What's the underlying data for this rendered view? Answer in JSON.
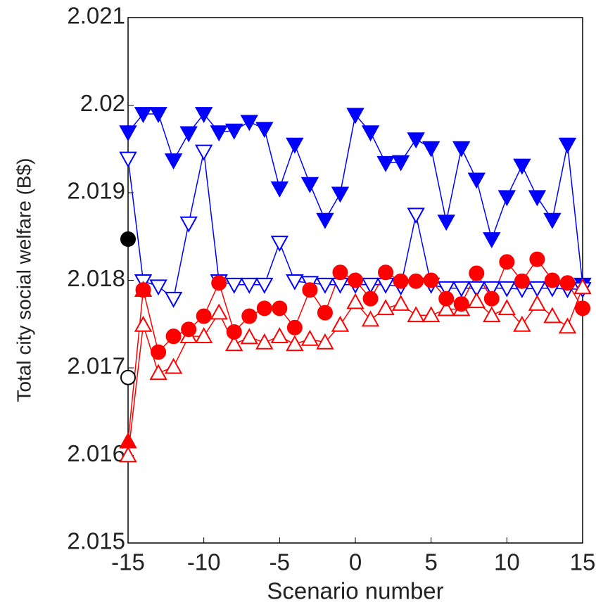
{
  "chart_data": {
    "type": "line",
    "xlabel": "Scenario number",
    "ylabel": "Total city social welfare (B$)",
    "x": [
      -15,
      -14,
      -13,
      -12,
      -11,
      -10,
      -9,
      -8,
      -7,
      -6,
      -5,
      -4,
      -3,
      -2,
      -1,
      0,
      1,
      2,
      3,
      4,
      5,
      6,
      7,
      8,
      9,
      10,
      11,
      12,
      13,
      14,
      15
    ],
    "xlim": [
      -15,
      15
    ],
    "xticks": [
      -15,
      -10,
      -5,
      0,
      5,
      10,
      15
    ],
    "ylim": [
      2.015,
      2.021
    ],
    "yticks": [
      2.015,
      2.016,
      2.017,
      2.018,
      2.019,
      2.02,
      2.021
    ],
    "series": [
      {
        "color": "#0000ff",
        "marker": "triangle-down",
        "filled": true,
        "values": [
          2.01969,
          2.0199,
          2.0199,
          2.01937,
          2.01968,
          2.0199,
          2.01969,
          2.01971,
          2.01981,
          2.01973,
          2.01905,
          2.01955,
          2.0191,
          2.01869,
          2.01899,
          2.01989,
          2.01969,
          2.01934,
          2.01935,
          2.01961,
          2.01951,
          2.01867,
          2.01951,
          2.01915,
          2.01847,
          2.01895,
          2.01931,
          2.01895,
          2.01869,
          2.01955,
          2.01795
        ]
      },
      {
        "color": "#0000ff",
        "marker": "triangle-down",
        "filled": false,
        "values": [
          2.01939,
          2.01799,
          2.01793,
          2.01779,
          2.01865,
          2.01947,
          2.01799,
          2.01795,
          2.01795,
          2.01795,
          2.01843,
          2.01799,
          2.01797,
          2.01795,
          2.01795,
          2.01795,
          2.01795,
          2.01795,
          2.01793,
          2.01875,
          2.01795,
          2.01791,
          2.01791,
          2.01791,
          2.01791,
          2.01791,
          2.0179,
          2.01791,
          2.01791,
          2.0179,
          2.0179
        ]
      },
      {
        "color": "#ff0000",
        "marker": "triangle-up",
        "filled": false,
        "values": [
          2.016,
          2.01749,
          2.01694,
          2.01701,
          2.01736,
          2.01736,
          2.01763,
          2.01727,
          2.01735,
          2.01729,
          2.01736,
          2.01727,
          2.01733,
          2.01729,
          2.01749,
          2.01775,
          2.01755,
          2.01768,
          2.01773,
          2.0176,
          2.0176,
          2.01767,
          2.01767,
          2.01776,
          2.0176,
          2.01768,
          2.01749,
          2.01773,
          2.01759,
          2.01747,
          2.01792
        ]
      },
      {
        "color": "#ff0000",
        "marker": "circle",
        "filled": true,
        "values": [
          null,
          2.01789,
          2.01718,
          2.01736,
          2.01744,
          2.01759,
          2.01797,
          2.01741,
          2.01759,
          2.01768,
          2.01768,
          2.01746,
          2.01789,
          2.01763,
          2.01809,
          2.018,
          2.01779,
          2.01809,
          2.01799,
          2.01799,
          2.018,
          2.01779,
          2.01773,
          2.01808,
          2.01779,
          2.01821,
          2.01799,
          2.01824,
          2.018,
          2.01797,
          2.01768
        ]
      },
      {
        "color": "#ff0000",
        "marker": "triangle-up",
        "filled": true,
        "values": [
          2.01616,
          2.01789,
          null,
          null,
          null,
          null,
          null,
          null,
          null,
          null,
          null,
          null,
          null,
          null,
          null,
          null,
          null,
          null,
          null,
          null,
          null,
          null,
          null,
          null,
          null,
          null,
          null,
          null,
          null,
          null,
          null
        ]
      },
      {
        "color": "#000000",
        "marker": "circle",
        "filled": true,
        "values": [
          2.01847,
          null,
          null,
          null,
          null,
          null,
          null,
          null,
          null,
          null,
          null,
          null,
          null,
          null,
          null,
          null,
          null,
          null,
          null,
          null,
          null,
          null,
          null,
          null,
          null,
          null,
          null,
          null,
          null,
          null,
          null
        ]
      },
      {
        "color": "#000000",
        "marker": "circle",
        "filled": false,
        "values": [
          2.01689,
          null,
          null,
          null,
          null,
          null,
          null,
          null,
          null,
          null,
          null,
          null,
          null,
          null,
          null,
          null,
          null,
          null,
          null,
          null,
          null,
          null,
          null,
          null,
          null,
          null,
          null,
          null,
          null,
          null,
          null
        ]
      }
    ]
  }
}
